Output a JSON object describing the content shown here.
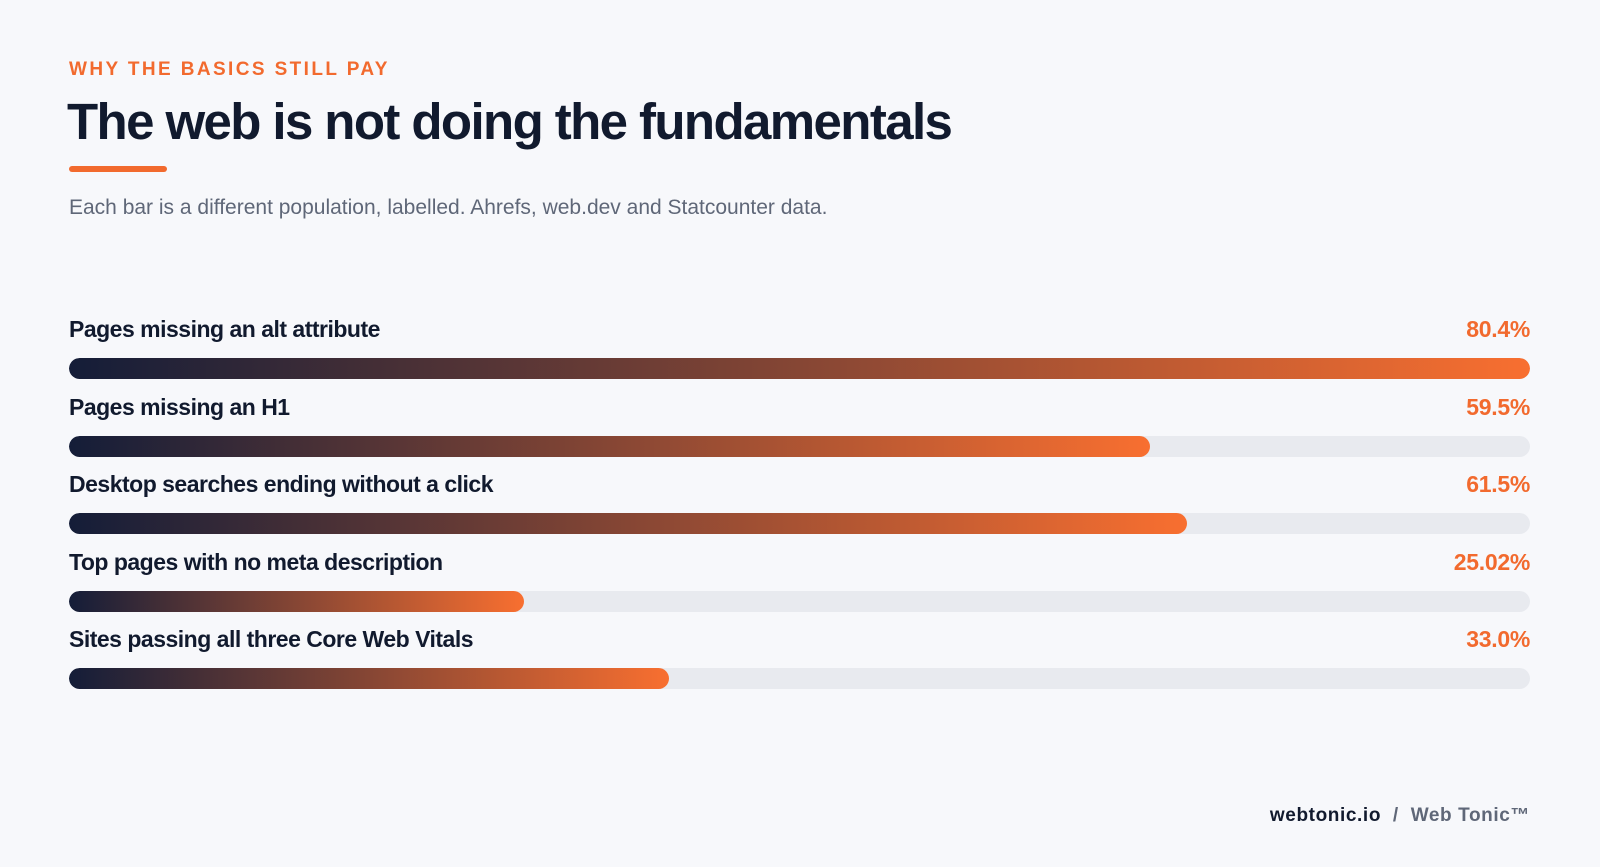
{
  "header": {
    "eyebrow": "WHY THE BASICS STILL PAY",
    "title": "The web is not doing the fundamentals",
    "subtitle": "Each bar is a different population, labelled. Ahrefs, web.dev and Statcounter data."
  },
  "colors": {
    "accent": "#f26a2e",
    "bar_start": "#141d38",
    "bar_end": "#f86f30",
    "track": "#e8eaef"
  },
  "chart_data": {
    "type": "bar",
    "orientation": "horizontal",
    "categories": [
      "Pages missing an alt attribute",
      "Pages missing an H1",
      "Desktop searches ending without a click",
      "Top pages with no meta description",
      "Sites passing all three Core Web Vitals"
    ],
    "values": [
      80.4,
      59.5,
      61.5,
      25.02,
      33.0
    ],
    "value_labels": [
      "80.4%",
      "59.5%",
      "61.5%",
      "25.02%",
      "33.0%"
    ],
    "title": "The web is not doing the fundamentals",
    "xlabel": "",
    "ylabel": "",
    "xlim": [
      0,
      80.4
    ],
    "grid": false,
    "legend": "none"
  },
  "footer": {
    "brand": "webtonic.io",
    "separator": "/",
    "product": "Web Tonic™"
  }
}
